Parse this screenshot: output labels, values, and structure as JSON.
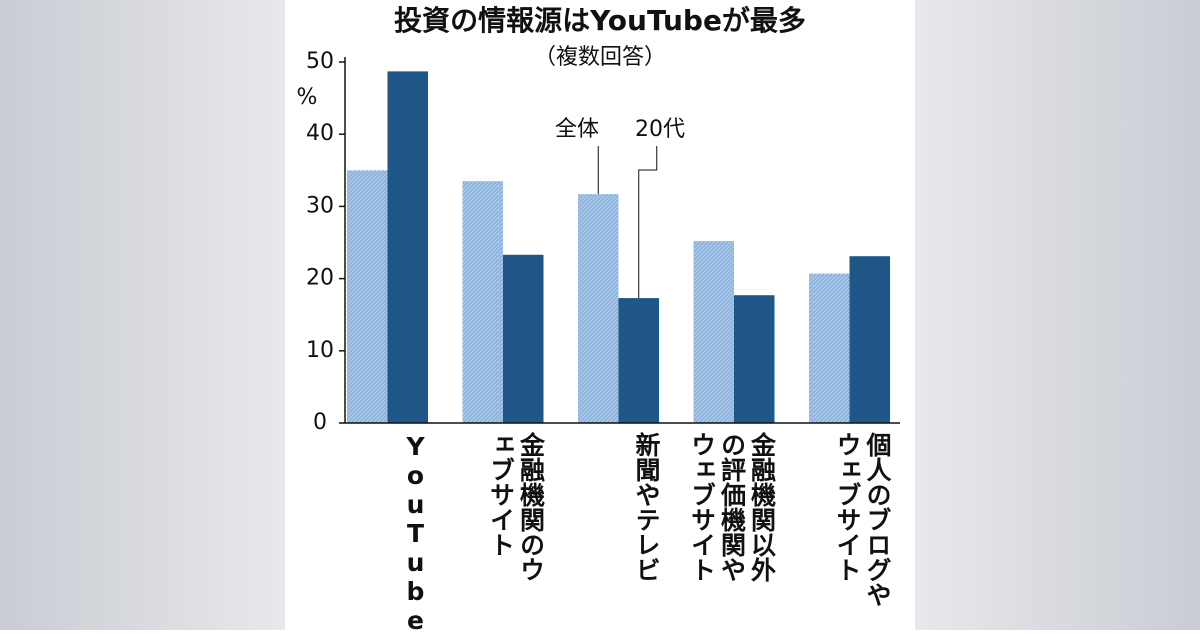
{
  "chart_data": {
    "type": "bar",
    "title": "投資の情報源はYouTubeが最多",
    "subtitle": "（複数回答）",
    "y_unit": "%",
    "categories": [
      "YouTube",
      "金融機関のウェブサイト",
      "新聞やテレビ",
      "金融機関以外の評価機関やウェブサイト",
      "個人のブログやウェブサイト"
    ],
    "series": [
      {
        "name": "全体",
        "color": "#8fb4dc",
        "values": [
          35,
          33.5,
          31.7,
          25.2,
          20.7
        ]
      },
      {
        "name": "20代",
        "color": "#1d5687",
        "values": [
          48.7,
          23.3,
          17.3,
          17.7,
          23.1
        ]
      }
    ],
    "ylim": [
      0,
      50
    ],
    "yticks": [
      0,
      10,
      20,
      30,
      40,
      50
    ]
  }
}
